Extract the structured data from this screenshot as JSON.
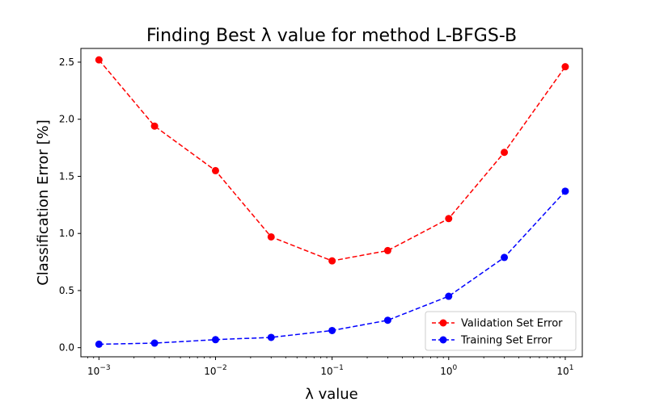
{
  "chart_data": {
    "type": "line",
    "title": "Finding Best λ value for method L-BFGS-B",
    "xlabel": "λ value",
    "ylabel": "Classification Error [%]",
    "xscale": "log",
    "xlim": [
      0.0007,
      14
    ],
    "ylim": [
      -0.08,
      2.62
    ],
    "x": [
      0.001,
      0.003,
      0.01,
      0.03,
      0.1,
      0.3,
      1,
      3,
      10
    ],
    "x_ticks": [
      {
        "value": 0.001,
        "base": "10",
        "exp": "−3"
      },
      {
        "value": 0.01,
        "base": "10",
        "exp": "−2"
      },
      {
        "value": 0.1,
        "base": "10",
        "exp": "−1"
      },
      {
        "value": 1,
        "base": "10",
        "exp": "0"
      },
      {
        "value": 10,
        "base": "10",
        "exp": "1"
      }
    ],
    "y_ticks": [
      {
        "value": 0.0,
        "label": "0.0"
      },
      {
        "value": 0.5,
        "label": "0.5"
      },
      {
        "value": 1.0,
        "label": "1.0"
      },
      {
        "value": 1.5,
        "label": "1.5"
      },
      {
        "value": 2.0,
        "label": "2.0"
      },
      {
        "value": 2.5,
        "label": "2.5"
      }
    ],
    "series": [
      {
        "name": "Validation Set Error",
        "color": "#ff0000",
        "style": "dashed",
        "marker": "circle",
        "values": [
          2.52,
          1.94,
          1.55,
          0.97,
          0.76,
          0.85,
          1.13,
          1.71,
          2.46
        ]
      },
      {
        "name": "Training Set Error",
        "color": "#0000ff",
        "style": "dashed",
        "marker": "circle",
        "values": [
          0.03,
          0.04,
          0.07,
          0.09,
          0.15,
          0.24,
          0.45,
          0.79,
          1.37
        ]
      }
    ],
    "legend_position": "lower-right",
    "grid": false
  }
}
